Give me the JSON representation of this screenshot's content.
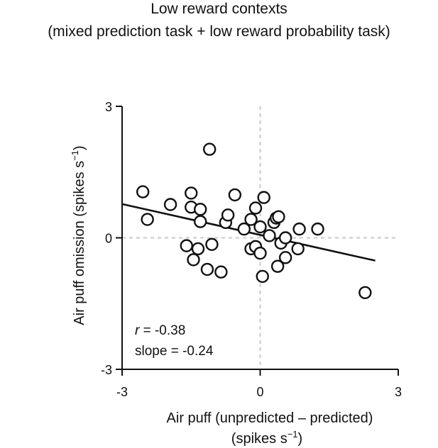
{
  "chart_data": {
    "type": "scatter",
    "title": "Low reward contexts",
    "subtitle": "(mixed prediction task + low reward probability task)",
    "xlabel": "Air puff (unpredicted – predicted)",
    "xlabel_unit": "(spikes s",
    "ylabel": "Air puff omission (spikes s",
    "unit_superscript": "−1",
    "unit_close": ")",
    "xlim": [
      -3,
      3
    ],
    "ylim": [
      -3,
      3
    ],
    "x_ticks": [
      "-3",
      "0",
      "3"
    ],
    "y_ticks": [
      "3",
      "0",
      "-3"
    ],
    "x_tick_values": [
      -3,
      0,
      3
    ],
    "y_tick_values": [
      3,
      0,
      -3
    ],
    "grid": false,
    "zero_lines": "dashed",
    "fit_line": {
      "x": [
        -3.0,
        2.5
      ],
      "y": [
        0.77,
        -0.52
      ]
    },
    "stats": {
      "r_label": "r",
      "r_value": " = -0.38",
      "slope_text": "slope = -0.24"
    },
    "points": [
      {
        "x": -2.55,
        "y": 1.05
      },
      {
        "x": -2.45,
        "y": 0.42
      },
      {
        "x": -1.95,
        "y": 0.76
      },
      {
        "x": -1.5,
        "y": 1.02
      },
      {
        "x": -1.5,
        "y": 0.7
      },
      {
        "x": -1.3,
        "y": 0.65
      },
      {
        "x": -1.3,
        "y": 0.37
      },
      {
        "x": -1.1,
        "y": 2.02
      },
      {
        "x": -0.75,
        "y": 0.35
      },
      {
        "x": -0.7,
        "y": 0.52
      },
      {
        "x": -0.55,
        "y": 0.98
      },
      {
        "x": -0.35,
        "y": 0.2
      },
      {
        "x": -0.2,
        "y": 0.42
      },
      {
        "x": -0.1,
        "y": 0.68
      },
      {
        "x": 0.0,
        "y": 0.25
      },
      {
        "x": 0.08,
        "y": 0.92
      },
      {
        "x": -1.6,
        "y": -0.18
      },
      {
        "x": -1.45,
        "y": -0.5
      },
      {
        "x": -1.35,
        "y": -0.25
      },
      {
        "x": -1.15,
        "y": -0.72
      },
      {
        "x": -1.05,
        "y": -0.15
      },
      {
        "x": -0.85,
        "y": -0.78
      },
      {
        "x": -0.2,
        "y": -0.25
      },
      {
        "x": -0.1,
        "y": -0.2
      },
      {
        "x": 0.0,
        "y": -0.35
      },
      {
        "x": 0.05,
        "y": -0.88
      },
      {
        "x": 0.2,
        "y": 0.05
      },
      {
        "x": 0.3,
        "y": 0.35
      },
      {
        "x": 0.35,
        "y": 0.45
      },
      {
        "x": 0.4,
        "y": 0.48
      },
      {
        "x": 0.45,
        "y": -0.12
      },
      {
        "x": 0.55,
        "y": 0.0
      },
      {
        "x": 0.55,
        "y": -0.45
      },
      {
        "x": 0.38,
        "y": -0.65
      },
      {
        "x": 0.82,
        "y": -0.25
      },
      {
        "x": 0.85,
        "y": 0.2
      },
      {
        "x": 1.25,
        "y": 0.2
      },
      {
        "x": 2.28,
        "y": -1.25
      }
    ]
  }
}
